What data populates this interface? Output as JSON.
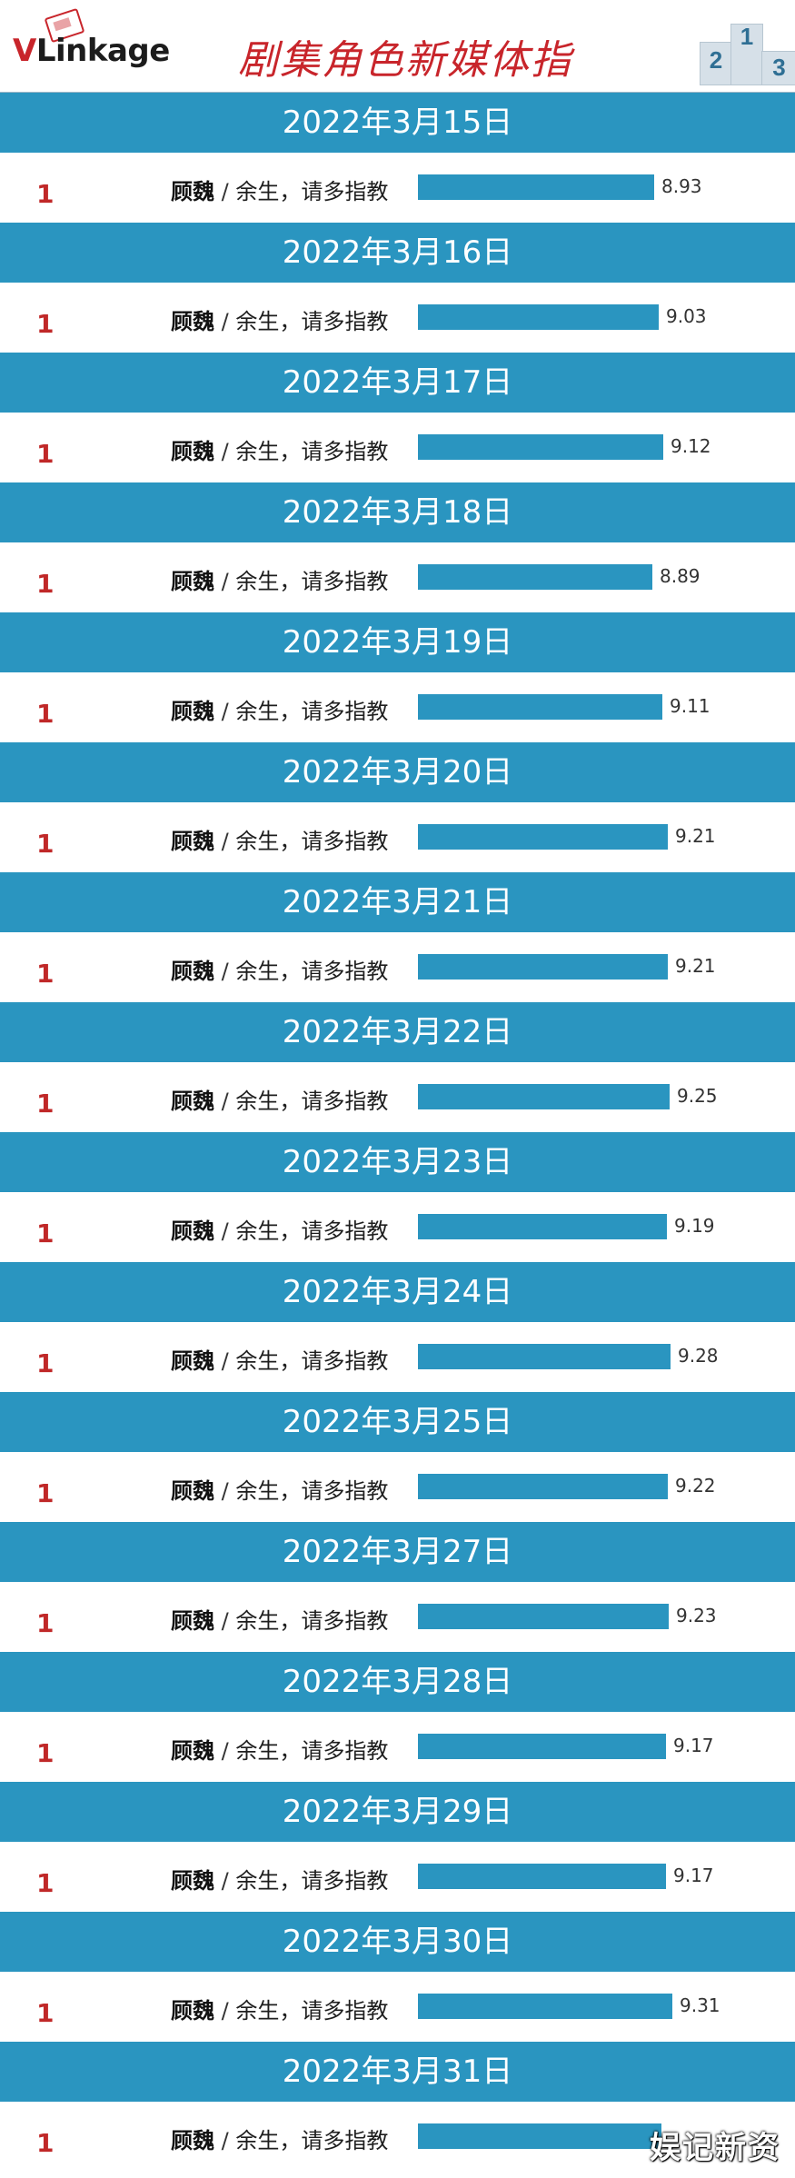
{
  "header": {
    "logo_text": "VLinkage",
    "title": "剧集角色新媒体指",
    "podium_numbers": [
      "2",
      "1",
      "3"
    ]
  },
  "watermark": "娱记新资",
  "colors": {
    "bar": "#2a95c0",
    "band": "#2a95c0",
    "rank": "#c02828",
    "title": "#c8252b"
  },
  "chart_data": {
    "type": "bar",
    "orientation": "horizontal",
    "title": "剧集角色新媒体指",
    "x": [
      "2022年3月15日",
      "2022年3月16日",
      "2022年3月17日",
      "2022年3月18日",
      "2022年3月19日",
      "2022年3月20日",
      "2022年3月21日",
      "2022年3月22日",
      "2022年3月23日",
      "2022年3月24日",
      "2022年3月25日",
      "2022年3月27日",
      "2022年3月28日",
      "2022年3月29日",
      "2022年3月30日",
      "2022年3月31日"
    ],
    "days": [
      {
        "date": "2022年3月15日",
        "rank": "1",
        "role": "顾魏",
        "drama": "余生，请多指教",
        "value": 8.93,
        "value_label": "8.93"
      },
      {
        "date": "2022年3月16日",
        "rank": "1",
        "role": "顾魏",
        "drama": "余生，请多指教",
        "value": 9.03,
        "value_label": "9.03"
      },
      {
        "date": "2022年3月17日",
        "rank": "1",
        "role": "顾魏",
        "drama": "余生，请多指教",
        "value": 9.12,
        "value_label": "9.12"
      },
      {
        "date": "2022年3月18日",
        "rank": "1",
        "role": "顾魏",
        "drama": "余生，请多指教",
        "value": 8.89,
        "value_label": "8.89"
      },
      {
        "date": "2022年3月19日",
        "rank": "1",
        "role": "顾魏",
        "drama": "余生，请多指教",
        "value": 9.11,
        "value_label": "9.11"
      },
      {
        "date": "2022年3月20日",
        "rank": "1",
        "role": "顾魏",
        "drama": "余生，请多指教",
        "value": 9.21,
        "value_label": "9.21"
      },
      {
        "date": "2022年3月21日",
        "rank": "1",
        "role": "顾魏",
        "drama": "余生，请多指教",
        "value": 9.21,
        "value_label": "9.21"
      },
      {
        "date": "2022年3月22日",
        "rank": "1",
        "role": "顾魏",
        "drama": "余生，请多指教",
        "value": 9.25,
        "value_label": "9.25"
      },
      {
        "date": "2022年3月23日",
        "rank": "1",
        "role": "顾魏",
        "drama": "余生，请多指教",
        "value": 9.19,
        "value_label": "9.19"
      },
      {
        "date": "2022年3月24日",
        "rank": "1",
        "role": "顾魏",
        "drama": "余生，请多指教",
        "value": 9.28,
        "value_label": "9.28"
      },
      {
        "date": "2022年3月25日",
        "rank": "1",
        "role": "顾魏",
        "drama": "余生，请多指教",
        "value": 9.22,
        "value_label": "9.22"
      },
      {
        "date": "2022年3月27日",
        "rank": "1",
        "role": "顾魏",
        "drama": "余生，请多指教",
        "value": 9.23,
        "value_label": "9.23"
      },
      {
        "date": "2022年3月28日",
        "rank": "1",
        "role": "顾魏",
        "drama": "余生，请多指教",
        "value": 9.17,
        "value_label": "9.17"
      },
      {
        "date": "2022年3月29日",
        "rank": "1",
        "role": "顾魏",
        "drama": "余生，请多指教",
        "value": 9.17,
        "value_label": "9.17"
      },
      {
        "date": "2022年3月30日",
        "rank": "1",
        "role": "顾魏",
        "drama": "余生，请多指教",
        "value": 9.31,
        "value_label": "9.31"
      },
      {
        "date": "2022年3月31日",
        "rank": "1",
        "role": "顾魏",
        "drama": "余生，请多指教",
        "value": null,
        "value_label": ""
      }
    ]
  }
}
